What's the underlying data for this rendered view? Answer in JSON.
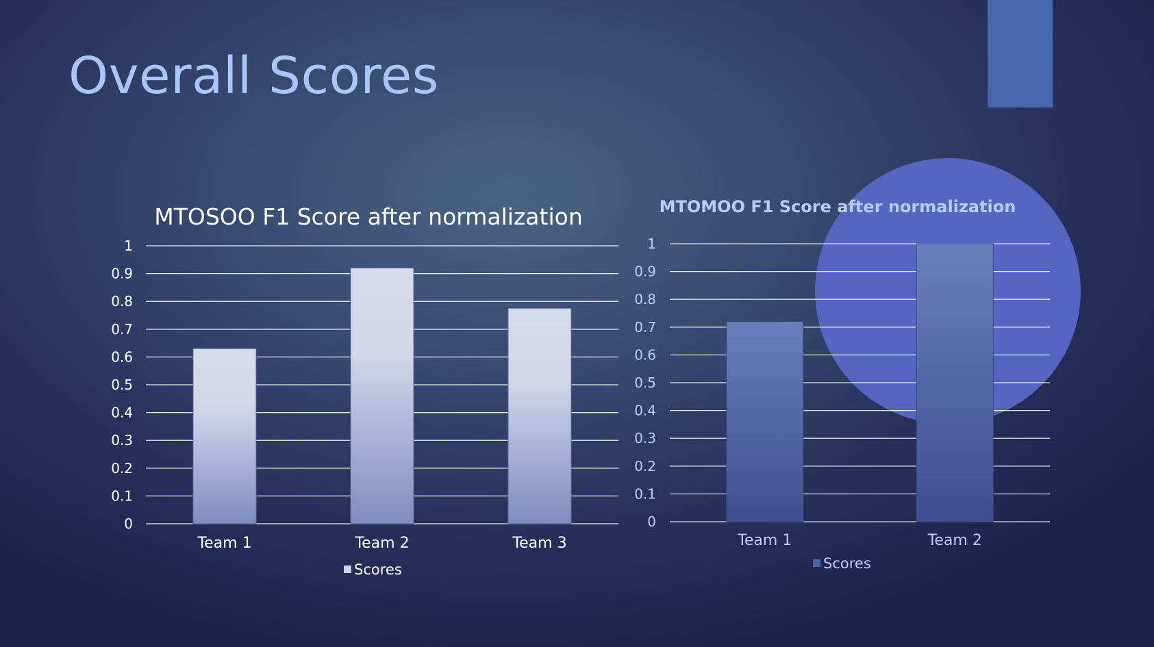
{
  "slide": {
    "title": "Overall Scores",
    "accent_color": "#4a66ae",
    "circle_color": "#5565c0"
  },
  "chart_data": [
    {
      "type": "bar",
      "title": "MTOSOO F1 Score after normalization",
      "categories": [
        "Team 1",
        "Team 2",
        "Team 3"
      ],
      "series": [
        {
          "name": "Scores",
          "values": [
            0.63,
            0.92,
            0.775
          ]
        }
      ],
      "ylim": [
        0,
        1
      ],
      "yticks": [
        "0",
        "0.1",
        "0.2",
        "0.3",
        "0.4",
        "0.5",
        "0.6",
        "0.7",
        "0.8",
        "0.9",
        "1"
      ],
      "grid": true,
      "legend": "bottom",
      "bar_color_top": "#d7dbeb",
      "bar_color_bottom": "#7e8cc2"
    },
    {
      "type": "bar",
      "title": "MTOMOO F1 Score after normalization",
      "categories": [
        "Team 1",
        "Team 2"
      ],
      "series": [
        {
          "name": "Scores",
          "values": [
            0.72,
            1.0
          ]
        }
      ],
      "ylim": [
        0,
        1
      ],
      "yticks": [
        "0",
        "0.1",
        "0.2",
        "0.3",
        "0.4",
        "0.5",
        "0.6",
        "0.7",
        "0.8",
        "0.9",
        "1"
      ],
      "grid": true,
      "legend": "bottom",
      "bar_color_top": "#6a80bc",
      "bar_color_bottom": "#3e4f8f"
    }
  ]
}
